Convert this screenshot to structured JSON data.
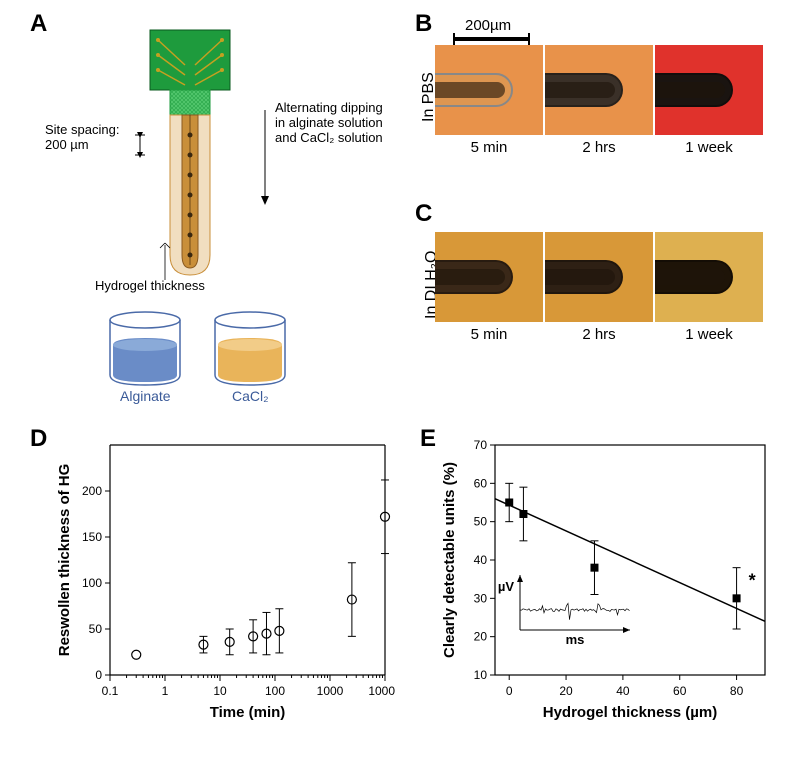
{
  "panelA": {
    "label": "A",
    "site_spacing_text": "Site spacing:\n200 µm",
    "dipping_text": "Alternating dipping in alginate solution and CaCl₂ solution",
    "hydrogel_text": "Hydrogel thickness",
    "beaker_left": "Alginate",
    "beaker_right": "CaCl₂",
    "beaker_left_color": "#6a8cc7",
    "beaker_right_color": "#e9b45a",
    "probe_color": "#c98f3a",
    "board_color": "#1e9b3d",
    "beaker_outline": "#4a6aa8"
  },
  "panelB": {
    "label": "B",
    "row_label": "In PBS",
    "scale_bar_text": "200µm",
    "times": [
      "5 min",
      "2 hrs",
      "1 week"
    ],
    "bg_colors": [
      "#e8924a",
      "#e8924a",
      "#e0322c"
    ],
    "tip_colors": [
      "#d8a868",
      "#3a3028",
      "#1a1410"
    ]
  },
  "panelC": {
    "label": "C",
    "row_label": "In DI H₂O",
    "times": [
      "5 min",
      "2 hrs",
      "1 week"
    ],
    "bg_colors": [
      "#d89838",
      "#d89838",
      "#deb050"
    ],
    "tip_colors": [
      "#3a2818",
      "#2e2014",
      "#1e1408"
    ]
  },
  "panelD": {
    "label": "D",
    "type": "scatter",
    "xlabel": "Time (min)",
    "ylabel": "Reswollen thickness of HG",
    "xscale": "log",
    "xlim": [
      0.1,
      10000
    ],
    "ylim": [
      0,
      250
    ],
    "xticks": [
      0.1,
      1,
      10,
      100,
      1000,
      10000
    ],
    "xtick_labels": [
      "0.1",
      "1",
      "10",
      "100",
      "1000",
      "10000"
    ],
    "yticks": [
      0,
      50,
      100,
      150,
      200
    ],
    "ytick_labels": [
      "0",
      "50",
      "100",
      "150",
      "200"
    ],
    "marker": "circle-open",
    "marker_color": "#000000",
    "points": [
      {
        "x": 0.3,
        "y": 22,
        "err": 0
      },
      {
        "x": 5,
        "y": 33,
        "err": 9
      },
      {
        "x": 15,
        "y": 36,
        "err": 14
      },
      {
        "x": 40,
        "y": 42,
        "err": 18
      },
      {
        "x": 70,
        "y": 45,
        "err": 23
      },
      {
        "x": 120,
        "y": 48,
        "err": 24
      },
      {
        "x": 2500,
        "y": 82,
        "err": 40
      },
      {
        "x": 10000,
        "y": 172,
        "err": 40
      }
    ],
    "label_fontsize": 15,
    "tick_fontsize": 12
  },
  "panelE": {
    "label": "E",
    "type": "scatter-with-fit",
    "xlabel": "Hydrogel thickness (µm)",
    "ylabel": "Clearly detectable units (%)",
    "xlim": [
      -5,
      90
    ],
    "ylim": [
      10,
      70
    ],
    "xticks": [
      0,
      20,
      40,
      60,
      80
    ],
    "xtick_labels": [
      "0",
      "20",
      "40",
      "60",
      "80"
    ],
    "yticks": [
      10,
      20,
      30,
      40,
      50,
      60,
      70
    ],
    "ytick_labels": [
      "10",
      "20",
      "30",
      "40",
      "50",
      "60",
      "70"
    ],
    "marker": "square-filled",
    "marker_color": "#000000",
    "points": [
      {
        "x": 0,
        "y": 55,
        "err": 5
      },
      {
        "x": 5,
        "y": 52,
        "err": 7
      },
      {
        "x": 30,
        "y": 38,
        "err": 7
      },
      {
        "x": 80,
        "y": 30,
        "err": 8,
        "annot": "*"
      }
    ],
    "fit_line": {
      "x1": -5,
      "y1": 56,
      "x2": 90,
      "y2": 24
    },
    "inset_x_label": "ms",
    "inset_y_label": "µV",
    "label_fontsize": 15,
    "tick_fontsize": 12
  }
}
